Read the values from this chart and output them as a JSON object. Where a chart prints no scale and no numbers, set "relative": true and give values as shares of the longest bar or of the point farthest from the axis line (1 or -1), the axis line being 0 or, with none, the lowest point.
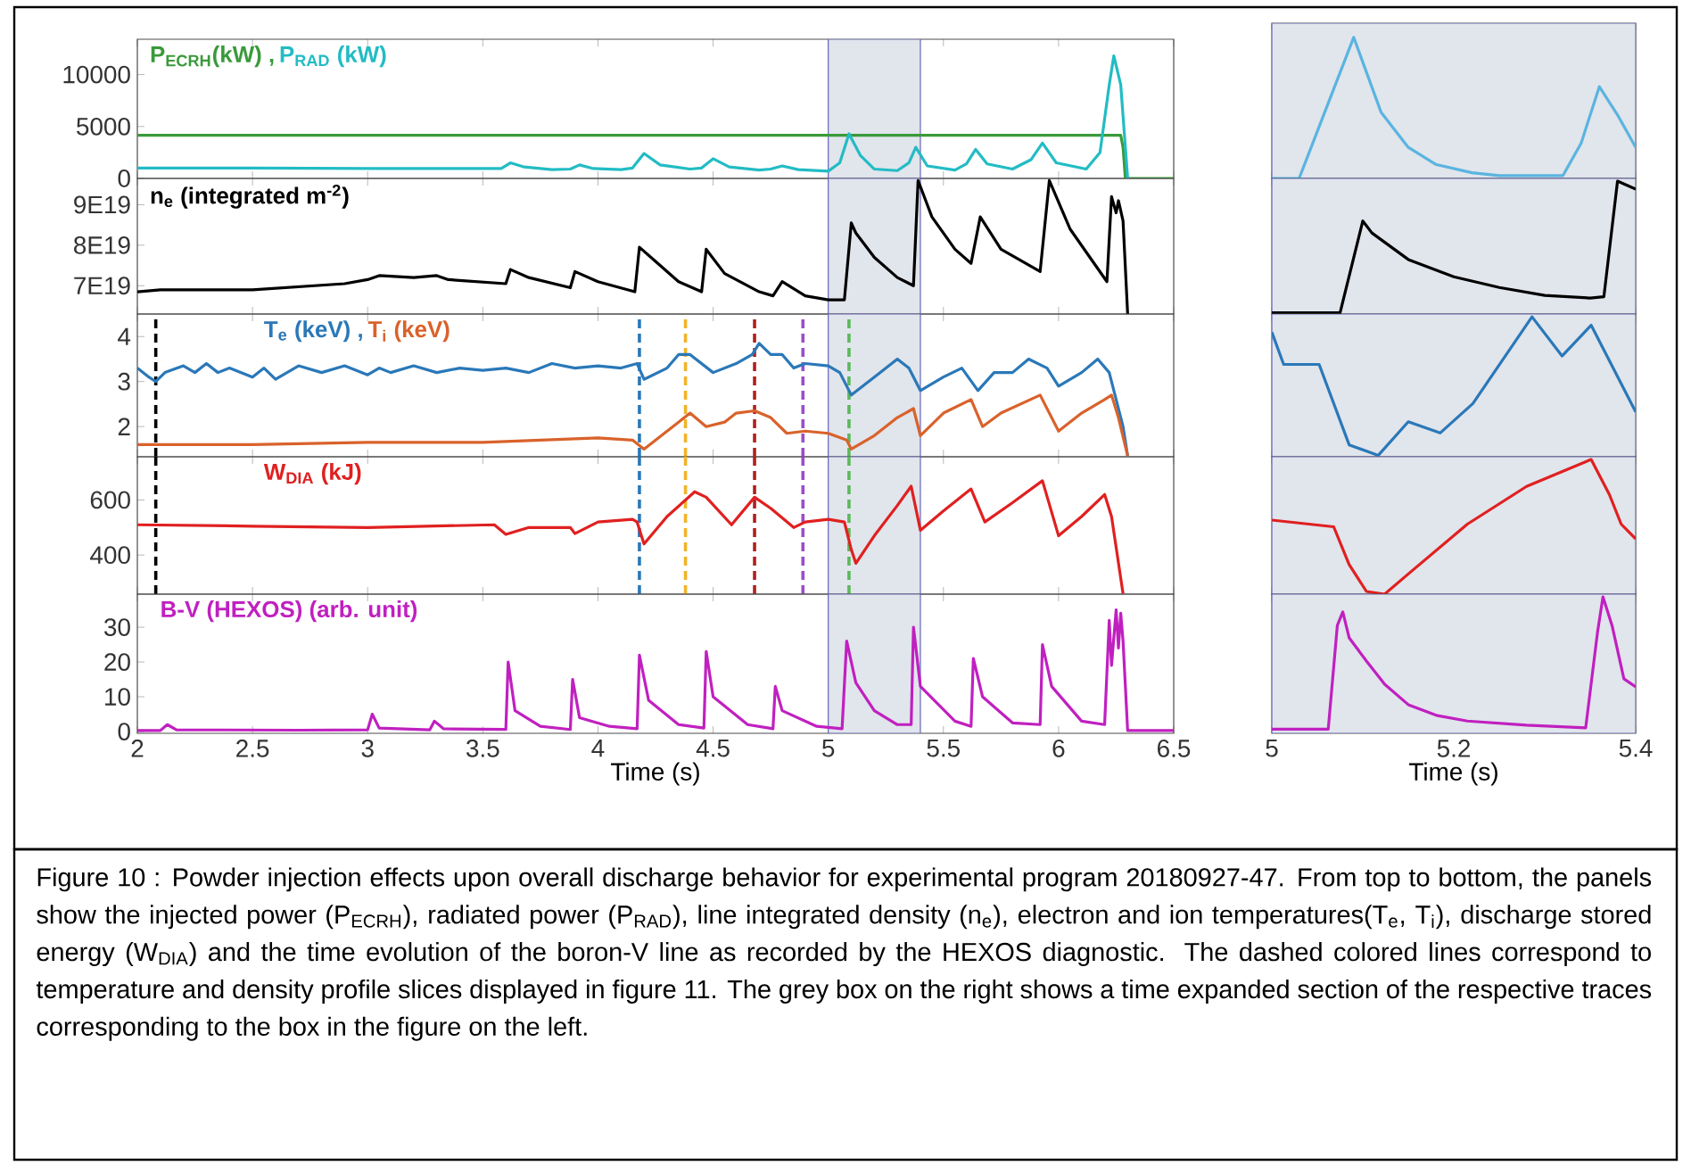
{
  "chart_data": [
    {
      "type": "line",
      "xlim": [
        2,
        6.5
      ],
      "xticks": [
        2,
        2.5,
        3,
        3.5,
        4,
        4.5,
        5,
        5.5,
        6,
        6.5
      ],
      "ylim": [
        0,
        13400
      ],
      "yticks": [
        0,
        5000,
        10000
      ],
      "tick_labels": "y",
      "bands": [
        {
          "axis": "x",
          "from": 5,
          "to": 5.4,
          "color": "#e1e5ec"
        }
      ],
      "series": [
        {
          "name": "P$_{ECRH}$(kW) ,",
          "color": "#3a9a3a",
          "x": [
            2,
            6.27,
            6.28,
            6.29,
            6.5
          ],
          "values": [
            4150,
            4150,
            3000,
            0,
            0
          ]
        },
        {
          "name": "P$_{RAD}$ (kW)",
          "color": "#22bcc4",
          "x": [
            2,
            2.5,
            3,
            3.5,
            3.58,
            3.62,
            3.68,
            3.8,
            3.88,
            3.92,
            3.98,
            4.1,
            4.15,
            4.2,
            4.27,
            4.4,
            4.45,
            4.5,
            4.57,
            4.7,
            4.75,
            4.8,
            4.87,
            5.0,
            5.05,
            5.09,
            5.14,
            5.2,
            5.3,
            5.35,
            5.38,
            5.43,
            5.55,
            5.6,
            5.64,
            5.69,
            5.8,
            5.88,
            5.93,
            5.99,
            6.12,
            6.18,
            6.22,
            6.24,
            6.27,
            6.3
          ],
          "values": [
            1000,
            1000,
            950,
            950,
            950,
            1500,
            1100,
            850,
            900,
            1300,
            950,
            850,
            1000,
            2400,
            1300,
            900,
            1000,
            1900,
            1100,
            800,
            900,
            1200,
            850,
            700,
            1500,
            4300,
            2200,
            900,
            750,
            1500,
            3000,
            1200,
            800,
            1400,
            2800,
            1400,
            900,
            1800,
            3400,
            1500,
            900,
            2500,
            9000,
            11800,
            9000,
            0
          ]
        }
      ],
      "annotations": [
        "Figure 10 : Powder injection effects upon overall discharge behavior for experimental program 20180927-47. From top to bottom, the panels show the injected power (P$_{ECRH}$), radiated power (P$_{RAD}$), line integrated density (n$_{e}$), electron and ion temperatures(T$_{e}$, T$_{i}$), discharge stored energy (W$_{DIA}$) and the time evolution of the boron-V line as recorded by the HEXOS diagnostic. The dashed colored lines correspond to temperature and density profile slices displayed in figure 11. The grey box on the right shows a time expanded section of the respective traces corresponding to the box in the figure on the left."
      ]
    },
    {
      "type": "line",
      "xlim": [
        2,
        6.5
      ],
      "xticks": [
        2,
        2.5,
        3,
        3.5,
        4,
        4.5,
        5,
        5.5,
        6,
        6.5
      ],
      "ylim": [
        6.3e+19,
        9.65e+19
      ],
      "yticks": [
        {
          "value": 7e+19,
          "label": "7E19"
        },
        {
          "value": 8e+19,
          "label": "8E19"
        },
        {
          "value": 9e+19,
          "label": "9E19"
        }
      ],
      "tick_labels": "y",
      "bands": [
        {
          "axis": "x",
          "from": 5,
          "to": 5.4,
          "color": "#e1e5ec"
        }
      ],
      "series": [
        {
          "name": "n$_{e}$ (integrated m$^{-2}$)",
          "color": "#000000",
          "x": [
            2,
            2.1,
            2.5,
            2.9,
            3.0,
            3.05,
            3.2,
            3.3,
            3.35,
            3.6,
            3.62,
            3.7,
            3.88,
            3.9,
            4.0,
            4.16,
            4.18,
            4.25,
            4.35,
            4.45,
            4.47,
            4.55,
            4.7,
            4.76,
            4.8,
            4.9,
            5.0,
            5.07,
            5.1,
            5.12,
            5.2,
            5.3,
            5.37,
            5.39,
            5.45,
            5.55,
            5.62,
            5.66,
            5.75,
            5.92,
            5.96,
            6.05,
            6.21,
            6.23,
            6.25,
            6.26,
            6.28,
            6.3
          ],
          "values": [
            6.85e+19,
            6.9e+19,
            6.9e+19,
            7.05e+19,
            7.15e+19,
            7.25e+19,
            7.2e+19,
            7.25e+19,
            7.15e+19,
            7.05e+19,
            7.4e+19,
            7.2e+19,
            6.95e+19,
            7.35e+19,
            7.1e+19,
            6.85e+19,
            7.95e+19,
            7.6e+19,
            7.1e+19,
            6.85e+19,
            7.9e+19,
            7.3e+19,
            6.85e+19,
            6.75e+19,
            7.1e+19,
            6.75e+19,
            6.65e+19,
            6.65e+19,
            8.55e+19,
            8.3e+19,
            7.7e+19,
            7.2e+19,
            7e+19,
            9.6e+19,
            8.7e+19,
            7.9e+19,
            7.55e+19,
            8.7e+19,
            7.9e+19,
            7.35e+19,
            9.6e+19,
            8.4e+19,
            7.1e+19,
            9.2e+19,
            8.8e+19,
            9.1e+19,
            8.6e+19,
            6.3e+19
          ]
        }
      ]
    },
    {
      "type": "line",
      "xlim": [
        2,
        6.5
      ],
      "xticks": [
        2,
        2.5,
        3,
        3.5,
        4,
        4.5,
        5,
        5.5,
        6,
        6.5
      ],
      "ylim": [
        1.33,
        4.5
      ],
      "yticks": [
        2,
        3,
        4
      ],
      "tick_labels": "y",
      "bands": [
        {
          "axis": "x",
          "from": 5,
          "to": 5.4,
          "color": "#e1e5ec"
        }
      ],
      "ref_lines": [
        {
          "axis": "x",
          "value": 2.08,
          "color": "#000000",
          "line_style": "dashed"
        },
        {
          "axis": "x",
          "value": 4.18,
          "color": "#2a78b8",
          "line_style": "dashed"
        },
        {
          "axis": "x",
          "value": 4.38,
          "color": "#f0b428",
          "line_style": "dashed"
        },
        {
          "axis": "x",
          "value": 4.68,
          "color": "#b02020",
          "line_style": "dashed"
        },
        {
          "axis": "x",
          "value": 4.89,
          "color": "#9b4dca",
          "line_style": "dashed"
        },
        {
          "axis": "x",
          "value": 5.09,
          "color": "#5cb85c",
          "line_style": "dashed"
        }
      ],
      "series": [
        {
          "name": "T$_{e}$ (keV) ,",
          "color": "#2a78b8",
          "x": [
            2,
            2.05,
            2.08,
            2.12,
            2.2,
            2.25,
            2.3,
            2.35,
            2.4,
            2.5,
            2.55,
            2.6,
            2.7,
            2.8,
            2.9,
            3.0,
            3.05,
            3.1,
            3.2,
            3.3,
            3.4,
            3.5,
            3.6,
            3.7,
            3.8,
            3.9,
            4.0,
            4.1,
            4.17,
            4.2,
            4.3,
            4.35,
            4.4,
            4.45,
            4.5,
            4.6,
            4.67,
            4.7,
            4.75,
            4.8,
            4.85,
            4.9,
            5.0,
            5.05,
            5.1,
            5.15,
            5.2,
            5.3,
            5.35,
            5.4,
            5.5,
            5.58,
            5.65,
            5.72,
            5.8,
            5.87,
            5.95,
            6.0,
            6.1,
            6.17,
            6.22,
            6.28,
            6.3
          ],
          "values": [
            3.3,
            3.1,
            3.0,
            3.2,
            3.35,
            3.2,
            3.4,
            3.2,
            3.3,
            3.1,
            3.3,
            3.05,
            3.35,
            3.2,
            3.35,
            3.15,
            3.3,
            3.2,
            3.35,
            3.2,
            3.3,
            3.25,
            3.3,
            3.2,
            3.4,
            3.3,
            3.35,
            3.3,
            3.4,
            3.05,
            3.3,
            3.6,
            3.6,
            3.4,
            3.2,
            3.4,
            3.6,
            3.85,
            3.6,
            3.6,
            3.3,
            3.4,
            3.35,
            3.2,
            2.7,
            2.9,
            3.1,
            3.5,
            3.3,
            2.8,
            3.1,
            3.3,
            2.8,
            3.2,
            3.2,
            3.5,
            3.3,
            2.9,
            3.2,
            3.5,
            3.2,
            2.0,
            1.35
          ]
        },
        {
          "name": "T$_{i}$ (keV)",
          "color": "#d9622b",
          "x": [
            2,
            2.5,
            3.0,
            3.5,
            4.0,
            4.15,
            4.2,
            4.3,
            4.4,
            4.47,
            4.55,
            4.6,
            4.68,
            4.75,
            4.82,
            4.9,
            5.0,
            5.08,
            5.1,
            5.2,
            5.3,
            5.37,
            5.4,
            5.5,
            5.62,
            5.67,
            5.75,
            5.92,
            6.0,
            6.1,
            6.2,
            6.23,
            6.26,
            6.3
          ],
          "values": [
            1.6,
            1.6,
            1.65,
            1.65,
            1.75,
            1.7,
            1.5,
            1.9,
            2.3,
            2.0,
            2.1,
            2.3,
            2.35,
            2.2,
            1.85,
            1.9,
            1.85,
            1.7,
            1.5,
            1.8,
            2.2,
            2.4,
            1.8,
            2.3,
            2.6,
            2.0,
            2.3,
            2.7,
            1.9,
            2.3,
            2.6,
            2.7,
            2.2,
            1.35
          ]
        }
      ]
    },
    {
      "type": "line",
      "xlim": [
        2,
        6.5
      ],
      "xticks": [
        2,
        2.5,
        3,
        3.5,
        4,
        4.5,
        5,
        5.5,
        6,
        6.5
      ],
      "ylim": [
        258,
        757
      ],
      "yticks": [
        400,
        600
      ],
      "tick_labels": "y",
      "bands": [
        {
          "axis": "x",
          "from": 5,
          "to": 5.4,
          "color": "#e1e5ec"
        }
      ],
      "ref_lines": [
        {
          "axis": "x",
          "value": 2.08,
          "color": "#000000",
          "line_style": "dashed"
        },
        {
          "axis": "x",
          "value": 4.18,
          "color": "#2a78b8",
          "line_style": "dashed"
        },
        {
          "axis": "x",
          "value": 4.38,
          "color": "#f0b428",
          "line_style": "dashed"
        },
        {
          "axis": "x",
          "value": 4.68,
          "color": "#b02020",
          "line_style": "dashed"
        },
        {
          "axis": "x",
          "value": 4.89,
          "color": "#9b4dca",
          "line_style": "dashed"
        },
        {
          "axis": "x",
          "value": 5.09,
          "color": "#5cb85c",
          "line_style": "dashed"
        }
      ],
      "series": [
        {
          "name": "W$_{DIA}$ (kJ)",
          "color": "#e02020",
          "x": [
            2,
            2.5,
            3.0,
            3.55,
            3.6,
            3.7,
            3.88,
            3.9,
            4.0,
            4.15,
            4.17,
            4.2,
            4.3,
            4.42,
            4.47,
            4.58,
            4.68,
            4.75,
            4.85,
            4.9,
            5.0,
            5.07,
            5.1,
            5.12,
            5.2,
            5.3,
            5.36,
            5.4,
            5.5,
            5.62,
            5.68,
            5.8,
            5.93,
            6.0,
            6.1,
            6.2,
            6.23,
            6.28
          ],
          "values": [
            510,
            505,
            500,
            510,
            475,
            500,
            500,
            478,
            520,
            530,
            520,
            440,
            540,
            630,
            610,
            510,
            610,
            570,
            500,
            520,
            530,
            520,
            420,
            370,
            470,
            580,
            650,
            490,
            560,
            640,
            520,
            590,
            670,
            470,
            540,
            620,
            540,
            260
          ]
        }
      ]
    },
    {
      "type": "line",
      "xlim": [
        2,
        6.5
      ],
      "xticks": [
        2,
        2.5,
        3,
        3.5,
        4,
        4.5,
        5,
        5.5,
        6,
        6.5
      ],
      "xlabel": "Time (s)",
      "ylim": [
        -0.5,
        39.5
      ],
      "yticks": [
        0,
        10,
        20,
        30
      ],
      "bands": [
        {
          "axis": "x",
          "from": 5,
          "to": 5.4,
          "color": "#e1e5ec"
        }
      ],
      "series": [
        {
          "name": "B-V (HEXOS) (arb. unit)",
          "color": "#c020c0",
          "x": [
            2,
            2.1,
            2.13,
            2.17,
            2.7,
            3.0,
            3.02,
            3.05,
            3.27,
            3.29,
            3.33,
            3.6,
            3.61,
            3.64,
            3.75,
            3.88,
            3.89,
            3.92,
            4.05,
            4.17,
            4.18,
            4.22,
            4.35,
            4.46,
            4.47,
            4.5,
            4.65,
            4.76,
            4.77,
            4.8,
            4.95,
            5.06,
            5.08,
            5.12,
            5.2,
            5.3,
            5.36,
            5.37,
            5.4,
            5.55,
            5.62,
            5.63,
            5.67,
            5.8,
            5.92,
            5.93,
            5.97,
            6.1,
            6.2,
            6.22,
            6.23,
            6.25,
            6.26,
            6.27,
            6.28,
            6.3,
            6.5
          ],
          "values": [
            0.3,
            0.3,
            2,
            0.5,
            0.4,
            0.5,
            5,
            1,
            0.5,
            3,
            0.8,
            0.6,
            20,
            6,
            1.5,
            0.6,
            15,
            4,
            1.5,
            0.8,
            22,
            9,
            2,
            1,
            23,
            10,
            2,
            0.8,
            13,
            6,
            1.5,
            0.8,
            26,
            14,
            6,
            2,
            2,
            30,
            13,
            3,
            1.5,
            21,
            10,
            2.5,
            2,
            25,
            13,
            3,
            2,
            32,
            19,
            35,
            24,
            34,
            26,
            0.3,
            0.3
          ]
        }
      ]
    },
    {
      "type": "line",
      "relative": true,
      "xlim": [
        5,
        5.4
      ],
      "xticks": [
        5,
        5.2,
        5.4
      ],
      "tick_labels": false,
      "bands": [
        {
          "axis": "x",
          "from": 5,
          "to": 5.4,
          "color": "#e1e5ec"
        }
      ],
      "series": [
        {
          "color": "#5ab4e0",
          "x": [
            5.0,
            5.03,
            5.06,
            5.09,
            5.12,
            5.15,
            5.18,
            5.22,
            5.25,
            5.32,
            5.34,
            5.36,
            5.38,
            5.4
          ],
          "values": [
            0,
            0,
            0.5,
            1,
            0.47,
            0.22,
            0.1,
            0.04,
            0.02,
            0.02,
            0.25,
            0.65,
            0.45,
            0.22
          ]
        }
      ]
    },
    {
      "type": "line",
      "relative": true,
      "xlim": [
        5,
        5.4
      ],
      "xticks": [
        5,
        5.2,
        5.4
      ],
      "tick_labels": false,
      "bands": [
        {
          "axis": "x",
          "from": 5,
          "to": 5.4,
          "color": "#e1e5ec"
        }
      ],
      "series": [
        {
          "color": "#000000",
          "x": [
            5.0,
            5.075,
            5.1,
            5.11,
            5.15,
            5.2,
            5.25,
            5.3,
            5.35,
            5.365,
            5.38,
            5.4
          ],
          "values": [
            0.01,
            0.01,
            0.7,
            0.61,
            0.41,
            0.28,
            0.2,
            0.14,
            0.12,
            0.13,
            1,
            0.94
          ]
        }
      ]
    },
    {
      "type": "line",
      "relative": true,
      "xlim": [
        5,
        5.4
      ],
      "xticks": [
        5,
        5.2,
        5.4
      ],
      "tick_labels": false,
      "bands": [
        {
          "axis": "x",
          "from": 5,
          "to": 5.4,
          "color": "#e1e5ec"
        }
      ],
      "series": [
        {
          "color": "#2a78b8",
          "x": [
            5.0,
            5.013,
            5.052,
            5.085,
            5.117,
            5.15,
            5.185,
            5.221,
            5.286,
            5.319,
            5.351,
            5.4
          ],
          "values": [
            0.89,
            0.66,
            0.66,
            0.085,
            0.01,
            0.25,
            0.17,
            0.38,
            1,
            0.72,
            0.94,
            0.32
          ]
        }
      ]
    },
    {
      "type": "line",
      "relative": true,
      "xlim": [
        5,
        5.4
      ],
      "xticks": [
        5,
        5.2,
        5.4
      ],
      "tick_labels": false,
      "bands": [
        {
          "axis": "x",
          "from": 5,
          "to": 5.4,
          "color": "#e1e5ec"
        }
      ],
      "series": [
        {
          "color": "#e02020",
          "x": [
            5.0,
            5.068,
            5.085,
            5.104,
            5.124,
            5.15,
            5.215,
            5.28,
            5.351,
            5.371,
            5.384,
            5.4
          ],
          "values": [
            0.55,
            0.5,
            0.22,
            0.02,
            0,
            0.15,
            0.52,
            0.8,
            1,
            0.74,
            0.52,
            0.41
          ]
        }
      ]
    },
    {
      "type": "line",
      "relative": true,
      "xlim": [
        5,
        5.4
      ],
      "xticks": [
        5,
        5.2,
        5.4
      ],
      "xlabel": "Time (s)",
      "tick_labels": "x",
      "bands": [
        {
          "axis": "x",
          "from": 5,
          "to": 5.4,
          "color": "#e1e5ec"
        }
      ],
      "series": [
        {
          "color": "#c020c0",
          "x": [
            5.0,
            5.062,
            5.072,
            5.078,
            5.085,
            5.104,
            5.124,
            5.15,
            5.182,
            5.215,
            5.28,
            5.345,
            5.358,
            5.364,
            5.374,
            5.387,
            5.4
          ],
          "values": [
            0.03,
            0.03,
            0.79,
            0.89,
            0.7,
            0.53,
            0.36,
            0.21,
            0.13,
            0.09,
            0.06,
            0.04,
            0.74,
            1,
            0.79,
            0.4,
            0.34
          ]
        }
      ]
    }
  ]
}
